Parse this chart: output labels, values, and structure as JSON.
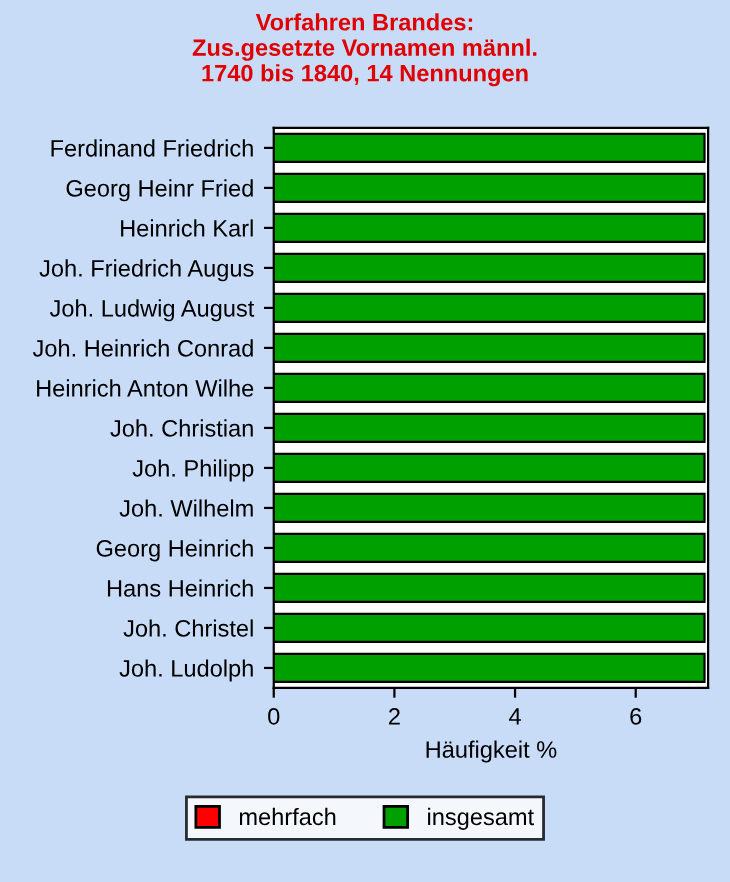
{
  "chart_data": {
    "type": "bar",
    "orientation": "horizontal",
    "title": "Vorfahren Brandes:\nZus.gesetzte Vornamen männl.\n1740 bis 1840, 14 Nennungen",
    "xlabel": "Häufigkeit %",
    "categories": [
      "Ferdinand Friedrich",
      "Georg Heinr Fried",
      "Heinrich Karl",
      "Joh. Friedrich Augus",
      "Joh. Ludwig August",
      "Joh. Heinrich Conrad",
      "Heinrich Anton Wilhe",
      "Joh. Christian",
      "Joh. Philipp",
      "Joh. Wilhelm",
      "Georg Heinrich",
      "Hans Heinrich",
      "Joh. Christel",
      "Joh. Ludolph"
    ],
    "series": [
      {
        "name": "mehrfach",
        "color": "#ff0000",
        "values": [
          0,
          0,
          0,
          0,
          0,
          0,
          0,
          0,
          0,
          0,
          0,
          0,
          0,
          0
        ]
      },
      {
        "name": "insgesamt",
        "color": "#00a000",
        "values": [
          7.14,
          7.14,
          7.14,
          7.14,
          7.14,
          7.14,
          7.14,
          7.14,
          7.14,
          7.14,
          7.14,
          7.14,
          7.14,
          7.14
        ]
      }
    ],
    "xlim": [
      0,
      7.2
    ],
    "xticks": [
      0,
      2,
      4,
      6
    ],
    "legend": "bottom"
  }
}
